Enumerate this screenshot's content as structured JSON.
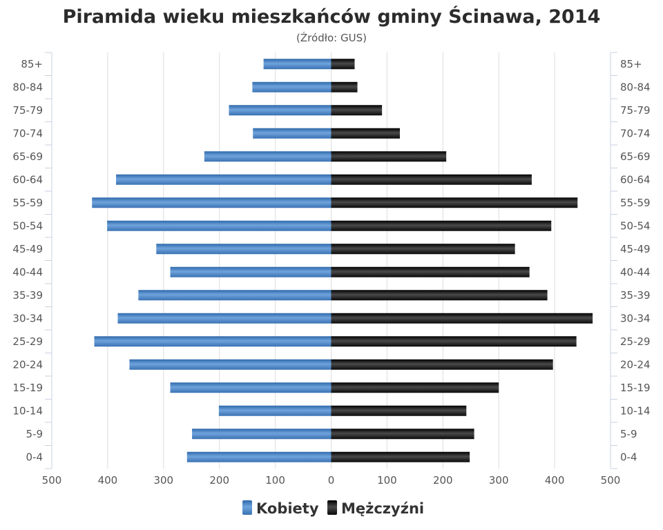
{
  "chart_data": {
    "type": "bar",
    "orientation": "horizontal",
    "title": "Piramida wieku mieszkańców gminy Ścinawa, 2014",
    "subtitle": "(Źródło: GUS)",
    "categories": [
      "85+",
      "80-84",
      "75-79",
      "70-74",
      "65-69",
      "60-64",
      "55-59",
      "50-54",
      "45-49",
      "40-44",
      "35-39",
      "30-34",
      "25-29",
      "20-24",
      "15-19",
      "10-14",
      "5-9",
      "0-4"
    ],
    "series": [
      {
        "name": "Kobiety",
        "color": "#4a85c4",
        "side": "left",
        "values": [
          121,
          141,
          183,
          140,
          227,
          385,
          428,
          401,
          313,
          288,
          345,
          382,
          424,
          361,
          288,
          201,
          249,
          258
        ]
      },
      {
        "name": "Mężczyźni",
        "color": "#1e1e1e",
        "side": "right",
        "values": [
          42,
          47,
          91,
          123,
          206,
          359,
          441,
          394,
          329,
          355,
          387,
          468,
          439,
          397,
          300,
          242,
          256,
          248
        ]
      }
    ],
    "xlim": [
      -500,
      500
    ],
    "x_ticks": [
      "500",
      "400",
      "300",
      "200",
      "100",
      "0",
      "100",
      "200",
      "300",
      "400",
      "500"
    ],
    "grid": "vertical",
    "legend_position": "bottom-center"
  }
}
